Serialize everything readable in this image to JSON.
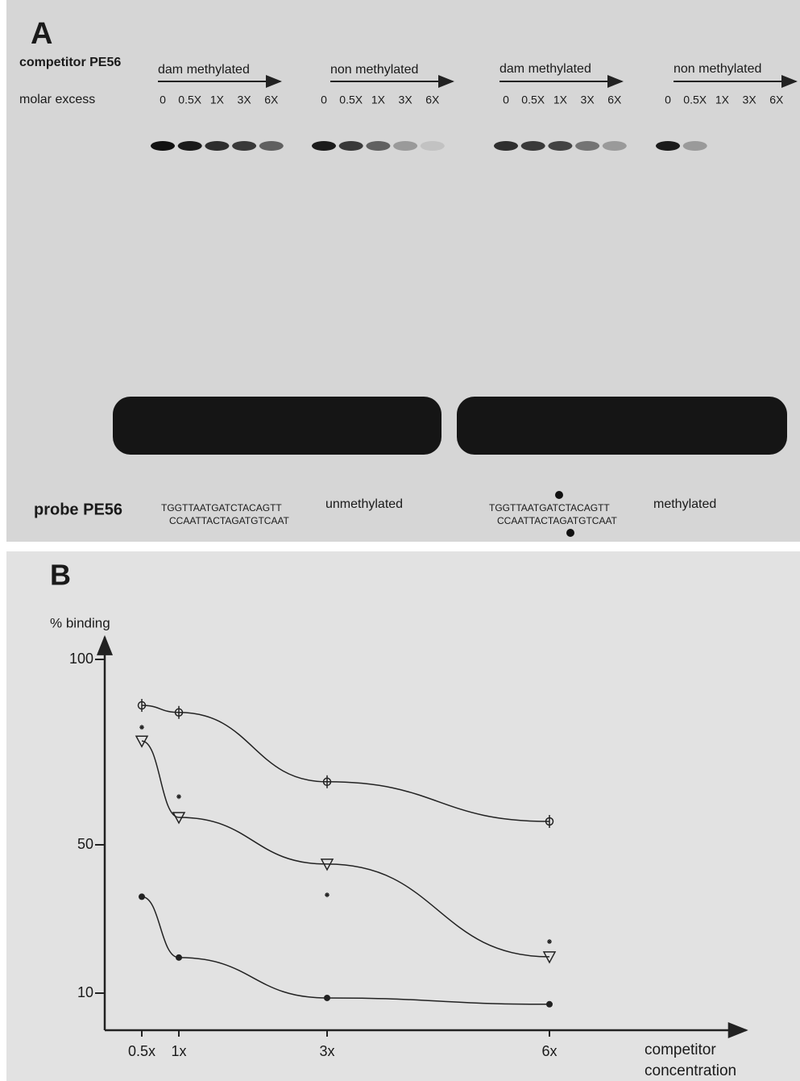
{
  "panel_a": {
    "label": "A",
    "competitor": "competitor PE56",
    "molar_excess": "molar excess",
    "groups": [
      {
        "title": "dam methylated",
        "lanes": [
          "0",
          "0.5X",
          "1X",
          "3X",
          "6X"
        ]
      },
      {
        "title": "non methylated",
        "lanes": [
          "0",
          "0.5X",
          "1X",
          "3X",
          "6X"
        ]
      },
      {
        "title": "dam methylated",
        "lanes": [
          "0",
          "0.5X",
          "1X",
          "3X",
          "6X"
        ]
      },
      {
        "title": "non methylated",
        "lanes": [
          "0",
          "0.5X",
          "1X",
          "3X",
          "6X"
        ]
      }
    ],
    "probe": "probe PE56",
    "probes": [
      {
        "top": "TGGTTAATGATCTACAGTT",
        "bottom": "CCAATTACTAGATGTCAAT",
        "label": "unmethylated"
      },
      {
        "top": "TGGTTAATGATCTACAGTT",
        "bottom": "CCAATTACTAGATGTCAAT",
        "label": "methylated"
      }
    ]
  },
  "chart_data": {
    "type": "scatter",
    "panel_label": "B",
    "y_label": "% binding",
    "x_label": "competitor concentration",
    "x": [
      0.5,
      1,
      3,
      6
    ],
    "xlim": [
      0,
      8.6
    ],
    "ylim": [
      0,
      106
    ],
    "xticks": [
      {
        "value": 0.5,
        "label": "0.5x"
      },
      {
        "value": 1,
        "label": "1x"
      },
      {
        "value": 3,
        "label": "3x"
      },
      {
        "value": 6,
        "label": "6x"
      }
    ],
    "yticks": [
      10,
      50,
      100
    ],
    "series": [
      {
        "marker": "phi",
        "line": true,
        "color": "#222222",
        "values": [
          87.6,
          85.7,
          67,
          56.3
        ]
      },
      {
        "marker": "triangle",
        "line": true,
        "color": "#222222",
        "values": [
          78,
          57.4,
          44.8,
          19.8
        ]
      },
      {
        "marker": "asterisk",
        "line": false,
        "color": "#222222",
        "values": [
          81.7,
          63,
          36.5,
          23.9
        ]
      },
      {
        "marker": "dot",
        "line": true,
        "color": "#222222",
        "values": [
          36,
          19.6,
          8.7,
          7
        ]
      }
    ]
  }
}
